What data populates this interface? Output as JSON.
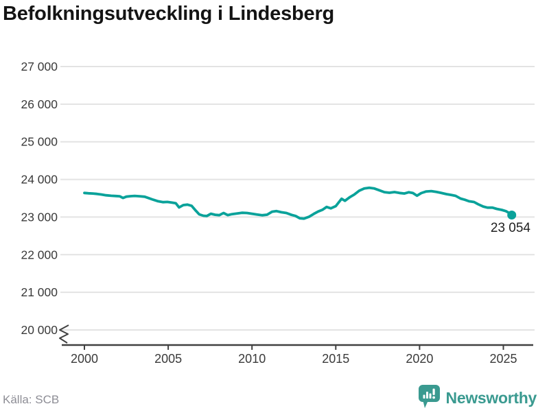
{
  "title": "Befolkningsutveckling i Lindesberg",
  "source": "Källa: SCB",
  "branding": {
    "name": "Newsworthy",
    "icon": "newsworthy-chart-bubble-icon"
  },
  "colors": {
    "line": "#0aa29a",
    "logo": "#3a9a90",
    "grid": "#e3e3e3",
    "axis": "#404040",
    "tick_text": "#3a3a3a",
    "title_text": "#141414",
    "source_text": "#8d8d95",
    "label_text": "#1f1f1f"
  },
  "chart_data": {
    "type": "line",
    "title": "Befolkningsutveckling i Lindesberg",
    "xlabel": "",
    "ylabel": "",
    "grid": "horizontal",
    "legend": "none",
    "axis_break_bottom": true,
    "xlim": [
      1998.6,
      2026.8
    ],
    "ylim": [
      20000,
      27000
    ],
    "x_ticks": [
      2000,
      2005,
      2010,
      2015,
      2020,
      2025
    ],
    "y_ticks": [
      {
        "value": 20000,
        "label": "20 000"
      },
      {
        "value": 21000,
        "label": "21 000"
      },
      {
        "value": 22000,
        "label": "22 000"
      },
      {
        "value": 23000,
        "label": "23 000"
      },
      {
        "value": 24000,
        "label": "24 000"
      },
      {
        "value": 25000,
        "label": "25 000"
      },
      {
        "value": 26000,
        "label": "26 000"
      },
      {
        "value": 27000,
        "label": "27 000"
      }
    ],
    "end_point": {
      "x": 2025.5,
      "value": 23054,
      "label": "23 054"
    },
    "series": [
      {
        "name": "Befolkning",
        "points": [
          [
            2000.0,
            23640
          ],
          [
            2000.25,
            23632
          ],
          [
            2000.5,
            23625
          ],
          [
            2000.75,
            23614
          ],
          [
            2001.0,
            23600
          ],
          [
            2001.3,
            23578
          ],
          [
            2001.6,
            23565
          ],
          [
            2001.9,
            23558
          ],
          [
            2002.1,
            23552
          ],
          [
            2002.3,
            23508
          ],
          [
            2002.5,
            23542
          ],
          [
            2002.75,
            23555
          ],
          [
            2003.0,
            23562
          ],
          [
            2003.3,
            23552
          ],
          [
            2003.6,
            23540
          ],
          [
            2003.85,
            23502
          ],
          [
            2004.1,
            23462
          ],
          [
            2004.4,
            23420
          ],
          [
            2004.7,
            23396
          ],
          [
            2004.95,
            23402
          ],
          [
            2005.2,
            23386
          ],
          [
            2005.45,
            23368
          ],
          [
            2005.65,
            23256
          ],
          [
            2005.9,
            23318
          ],
          [
            2006.15,
            23330
          ],
          [
            2006.4,
            23298
          ],
          [
            2006.65,
            23168
          ],
          [
            2006.85,
            23072
          ],
          [
            2007.1,
            23036
          ],
          [
            2007.3,
            23028
          ],
          [
            2007.55,
            23088
          ],
          [
            2007.8,
            23060
          ],
          [
            2008.05,
            23050
          ],
          [
            2008.3,
            23108
          ],
          [
            2008.55,
            23052
          ],
          [
            2008.8,
            23078
          ],
          [
            2009.1,
            23096
          ],
          [
            2009.4,
            23114
          ],
          [
            2009.7,
            23108
          ],
          [
            2010.0,
            23088
          ],
          [
            2010.3,
            23066
          ],
          [
            2010.6,
            23048
          ],
          [
            2010.9,
            23062
          ],
          [
            2011.2,
            23142
          ],
          [
            2011.45,
            23160
          ],
          [
            2011.75,
            23128
          ],
          [
            2012.05,
            23108
          ],
          [
            2012.35,
            23058
          ],
          [
            2012.6,
            23030
          ],
          [
            2012.85,
            22968
          ],
          [
            2013.1,
            22958
          ],
          [
            2013.4,
            23006
          ],
          [
            2013.7,
            23088
          ],
          [
            2013.95,
            23148
          ],
          [
            2014.2,
            23192
          ],
          [
            2014.45,
            23268
          ],
          [
            2014.7,
            23232
          ],
          [
            2015.0,
            23290
          ],
          [
            2015.35,
            23488
          ],
          [
            2015.55,
            23432
          ],
          [
            2015.85,
            23532
          ],
          [
            2016.1,
            23598
          ],
          [
            2016.4,
            23700
          ],
          [
            2016.7,
            23758
          ],
          [
            2017.0,
            23778
          ],
          [
            2017.3,
            23758
          ],
          [
            2017.6,
            23712
          ],
          [
            2017.9,
            23662
          ],
          [
            2018.2,
            23645
          ],
          [
            2018.5,
            23664
          ],
          [
            2018.8,
            23640
          ],
          [
            2019.1,
            23625
          ],
          [
            2019.35,
            23658
          ],
          [
            2019.6,
            23638
          ],
          [
            2019.85,
            23568
          ],
          [
            2020.1,
            23636
          ],
          [
            2020.4,
            23680
          ],
          [
            2020.7,
            23690
          ],
          [
            2021.0,
            23668
          ],
          [
            2021.25,
            23645
          ],
          [
            2021.6,
            23610
          ],
          [
            2021.9,
            23586
          ],
          [
            2022.15,
            23564
          ],
          [
            2022.45,
            23490
          ],
          [
            2022.7,
            23460
          ],
          [
            2022.95,
            23420
          ],
          [
            2023.25,
            23400
          ],
          [
            2023.5,
            23340
          ],
          [
            2023.8,
            23280
          ],
          [
            2024.05,
            23250
          ],
          [
            2024.35,
            23250
          ],
          [
            2024.6,
            23218
          ],
          [
            2024.9,
            23190
          ],
          [
            2025.15,
            23158
          ],
          [
            2025.35,
            23108
          ],
          [
            2025.5,
            23054
          ]
        ]
      }
    ]
  }
}
